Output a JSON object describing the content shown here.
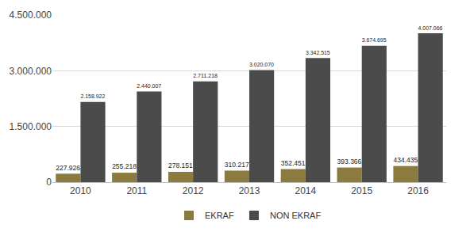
{
  "chart_data": {
    "type": "bar",
    "categories": [
      "2010",
      "2011",
      "2012",
      "2013",
      "2014",
      "2015",
      "2016"
    ],
    "series": [
      {
        "name": "EKRAF",
        "color": "#8c7b3e",
        "values": [
          227926,
          255218,
          278151,
          310217,
          352451,
          393366,
          434435
        ],
        "value_labels": [
          "227.926",
          "255.218",
          "278.151",
          "310.217",
          "352.451",
          "393.366",
          "434.435"
        ]
      },
      {
        "name": "NON EKRAF",
        "color": "#4b4b4b",
        "values": [
          2158922,
          2440007,
          2711218,
          3020070,
          3342515,
          3674695,
          4007066
        ],
        "value_labels": [
          "2.158.922",
          "2.440.007",
          "2.711.218",
          "3.020.070",
          "3.342.515",
          "3.674.695",
          "4.007.066"
        ]
      }
    ],
    "ylim": [
      0,
      4500000
    ],
    "yticks": [
      0,
      {
        "value": 1500000,
        "label": "1.500.000"
      },
      {
        "value": 3000000,
        "label": "3.000.000"
      },
      {
        "value": 4500000,
        "label": "4.500.000"
      }
    ],
    "grid": true,
    "legend": "bottom",
    "data_labels": true
  }
}
